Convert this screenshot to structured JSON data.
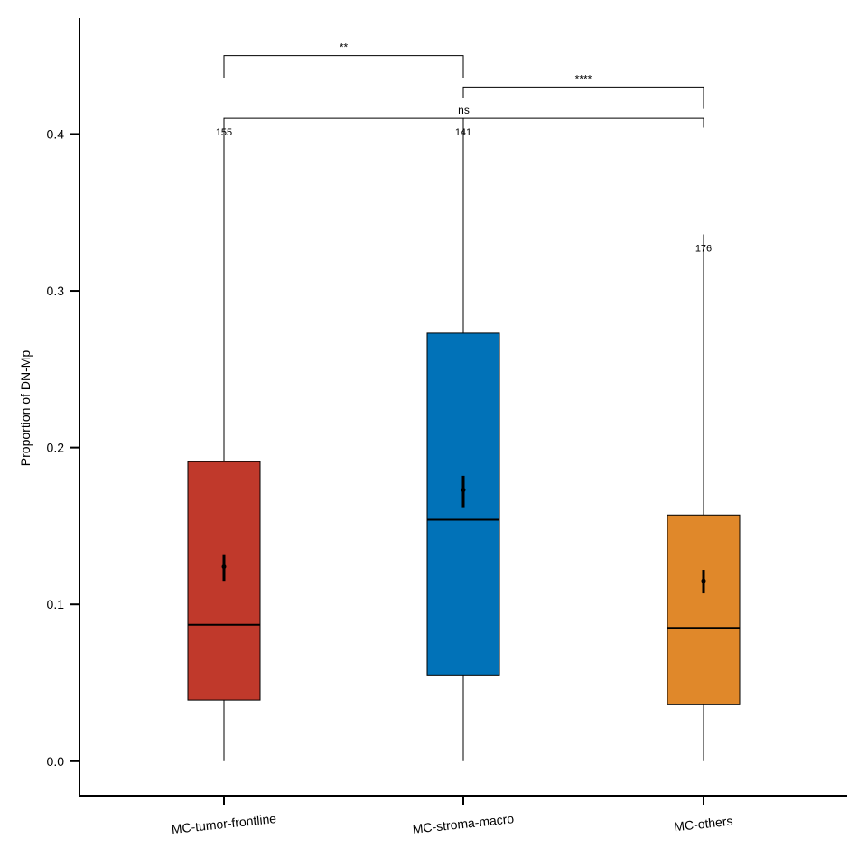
{
  "chart_data": {
    "type": "box",
    "ylabel": "Proportion of DN-Mp",
    "ylim": [
      -0.022,
      0.474
    ],
    "yticks": [
      0.0,
      0.1,
      0.2,
      0.3,
      0.4
    ],
    "ytick_labels": [
      "0.0",
      "0.1",
      "0.2",
      "0.3",
      "0.4"
    ],
    "categories": [
      "MC-tumor-frontline",
      "MC-stroma-macro",
      "MC-others"
    ],
    "groups": [
      {
        "name": "MC-tumor-frontline",
        "n": "155",
        "color": "#C0392B",
        "whisker_low": 0.0,
        "q1": 0.039,
        "median": 0.087,
        "q3": 0.191,
        "whisker_high": 0.41,
        "mean": 0.124,
        "ci_low": 0.115,
        "ci_high": 0.132
      },
      {
        "name": "MC-stroma-macro",
        "n": "141",
        "color": "#0172B8",
        "whisker_low": 0.0,
        "q1": 0.055,
        "median": 0.154,
        "q3": 0.273,
        "whisker_high": 0.41,
        "mean": 0.173,
        "ci_low": 0.162,
        "ci_high": 0.182
      },
      {
        "name": "MC-others",
        "n": "176",
        "color": "#E0882A",
        "whisker_low": 0.0,
        "q1": 0.036,
        "median": 0.085,
        "q3": 0.157,
        "whisker_high": 0.336,
        "mean": 0.115,
        "ci_low": 0.107,
        "ci_high": 0.122
      }
    ],
    "comparisons": [
      {
        "from": 0,
        "to": 1,
        "label": "**",
        "y": 0.45,
        "left_tip": 0.436,
        "right_tip": 0.436
      },
      {
        "from": 1,
        "to": 2,
        "label": "****",
        "y": 0.43,
        "left_tip": 0.423,
        "right_tip": 0.416
      },
      {
        "from": 0,
        "to": 2,
        "label": "ns",
        "y": 0.41,
        "left_tip": 0.404,
        "right_tip": 0.404
      }
    ],
    "grid": false,
    "legend": "none"
  }
}
